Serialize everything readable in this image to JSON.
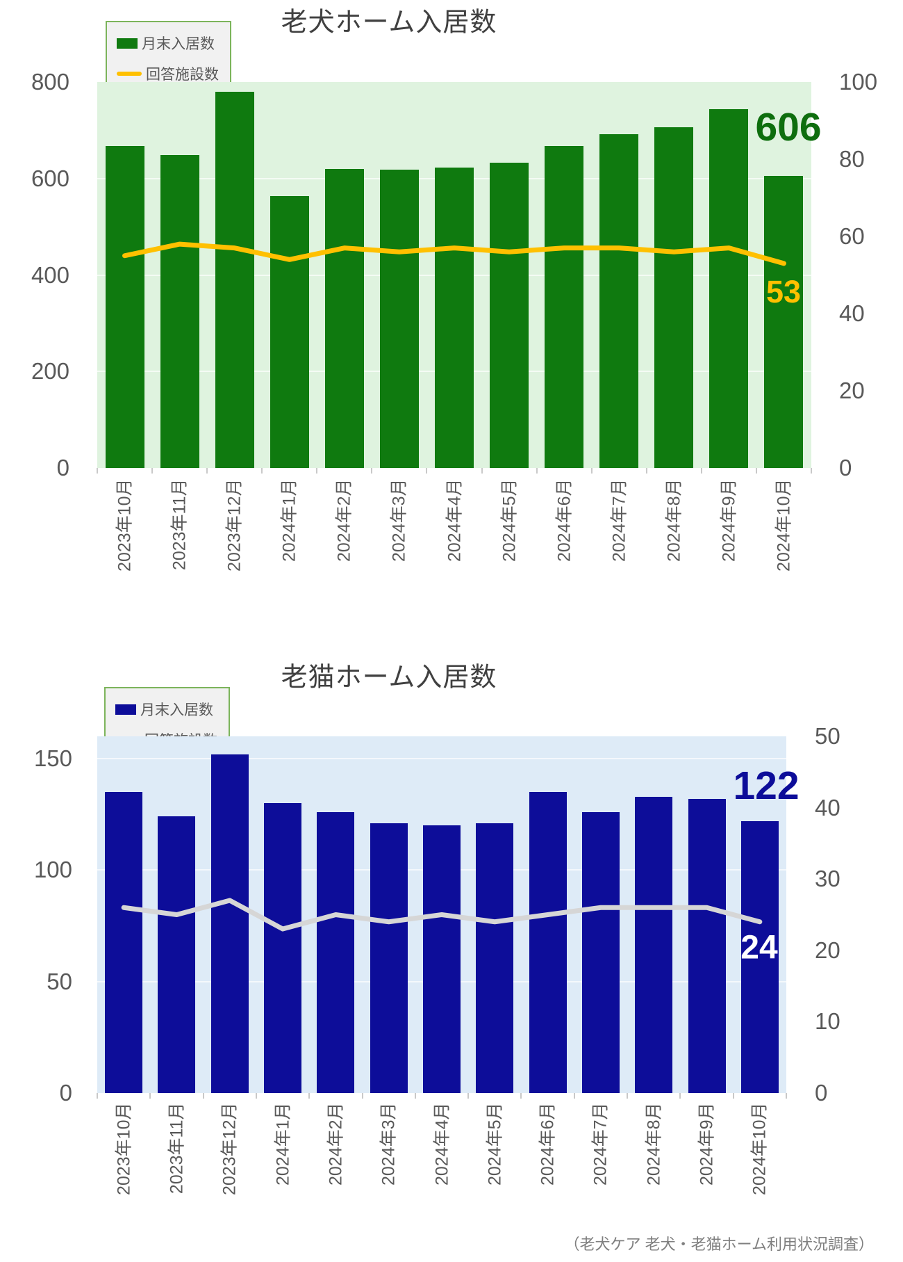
{
  "source_note": "（老犬ケア 老犬・老猫ホーム利用状況調査）",
  "colors": {
    "dog_bar": "#0F7A0F",
    "dog_plot_bg": "#DFF3DF",
    "dog_value_label": "#0E6E0E",
    "dog_line": "#FFC000",
    "cat_bar": "#0D0D99",
    "cat_plot_bg": "#DEEBF7",
    "cat_value_label": "#0D0D99",
    "cat_line": "#D6D6D6",
    "axis_text": "#595959",
    "title_text": "#404040"
  },
  "chart_data": [
    {
      "type": "bar",
      "title": "老犬ホーム入居数",
      "legend": [
        {
          "label": "月末入居数",
          "swatch": "bar"
        },
        {
          "label": "回答施設数",
          "swatch": "line"
        }
      ],
      "categories": [
        "2023年10月",
        "2023年11月",
        "2023年12月",
        "2024年1月",
        "2024年2月",
        "2024年3月",
        "2024年4月",
        "2024年5月",
        "2024年6月",
        "2024年7月",
        "2024年8月",
        "2024年9月",
        "2024年10月"
      ],
      "series": [
        {
          "name": "月末入居数",
          "type": "bar",
          "axis": "left",
          "color": "#0F7A0F",
          "values": [
            668,
            648,
            780,
            563,
            620,
            619,
            622,
            633,
            668,
            692,
            707,
            744,
            606
          ]
        },
        {
          "name": "回答施設数",
          "type": "line",
          "axis": "right",
          "color": "#FFC000",
          "values": [
            55,
            58,
            57,
            54,
            57,
            56,
            57,
            56,
            57,
            57,
            56,
            57,
            53
          ]
        }
      ],
      "left_axis": {
        "min": 0,
        "max": 800,
        "ticks": [
          0,
          200,
          400,
          600,
          800
        ],
        "gridlines": [
          200,
          400,
          600
        ]
      },
      "right_axis": {
        "min": 0,
        "max": 100,
        "ticks": [
          0,
          20,
          40,
          60,
          80,
          100
        ]
      },
      "end_labels": [
        {
          "text": "606",
          "series": "月末入居数",
          "color": "#0E6E0E"
        },
        {
          "text": "53",
          "series": "回答施設数",
          "color": "#FFC000"
        }
      ],
      "plot_bg": "#DFF3DF",
      "legend_position": "top-left",
      "grid": "horizontal-faint"
    },
    {
      "type": "bar",
      "title": "老猫ホーム入居数",
      "legend": [
        {
          "label": "月末入居数",
          "swatch": "bar"
        },
        {
          "label": "回答施設数",
          "swatch": "line"
        }
      ],
      "categories": [
        "2023年10月",
        "2023年11月",
        "2023年12月",
        "2024年1月",
        "2024年2月",
        "2024年3月",
        "2024年4月",
        "2024年5月",
        "2024年6月",
        "2024年7月",
        "2024年8月",
        "2024年9月",
        "2024年10月"
      ],
      "series": [
        {
          "name": "月末入居数",
          "type": "bar",
          "axis": "left",
          "color": "#0D0D99",
          "values": [
            135,
            124,
            152,
            130,
            126,
            121,
            120,
            121,
            135,
            126,
            133,
            132,
            122
          ]
        },
        {
          "name": "回答施設数",
          "type": "line",
          "axis": "right",
          "color": "#D6D6D6",
          "values": [
            26,
            25,
            27,
            23,
            25,
            24,
            25,
            24,
            25,
            26,
            26,
            26,
            24
          ]
        }
      ],
      "left_axis": {
        "min": 0,
        "max": 160,
        "ticks": [
          0,
          50,
          100,
          150
        ],
        "gridlines": [
          50,
          100,
          150
        ]
      },
      "right_axis": {
        "min": 0,
        "max": 50,
        "ticks": [
          0,
          10,
          20,
          30,
          40,
          50
        ]
      },
      "end_labels": [
        {
          "text": "122",
          "series": "月末入居数",
          "color": "#0D0D99"
        },
        {
          "text": "24",
          "series": "回答施設数",
          "color": "#FFFFFF"
        }
      ],
      "plot_bg": "#DEEBF7",
      "legend_position": "top-left",
      "grid": "horizontal-faint"
    }
  ]
}
